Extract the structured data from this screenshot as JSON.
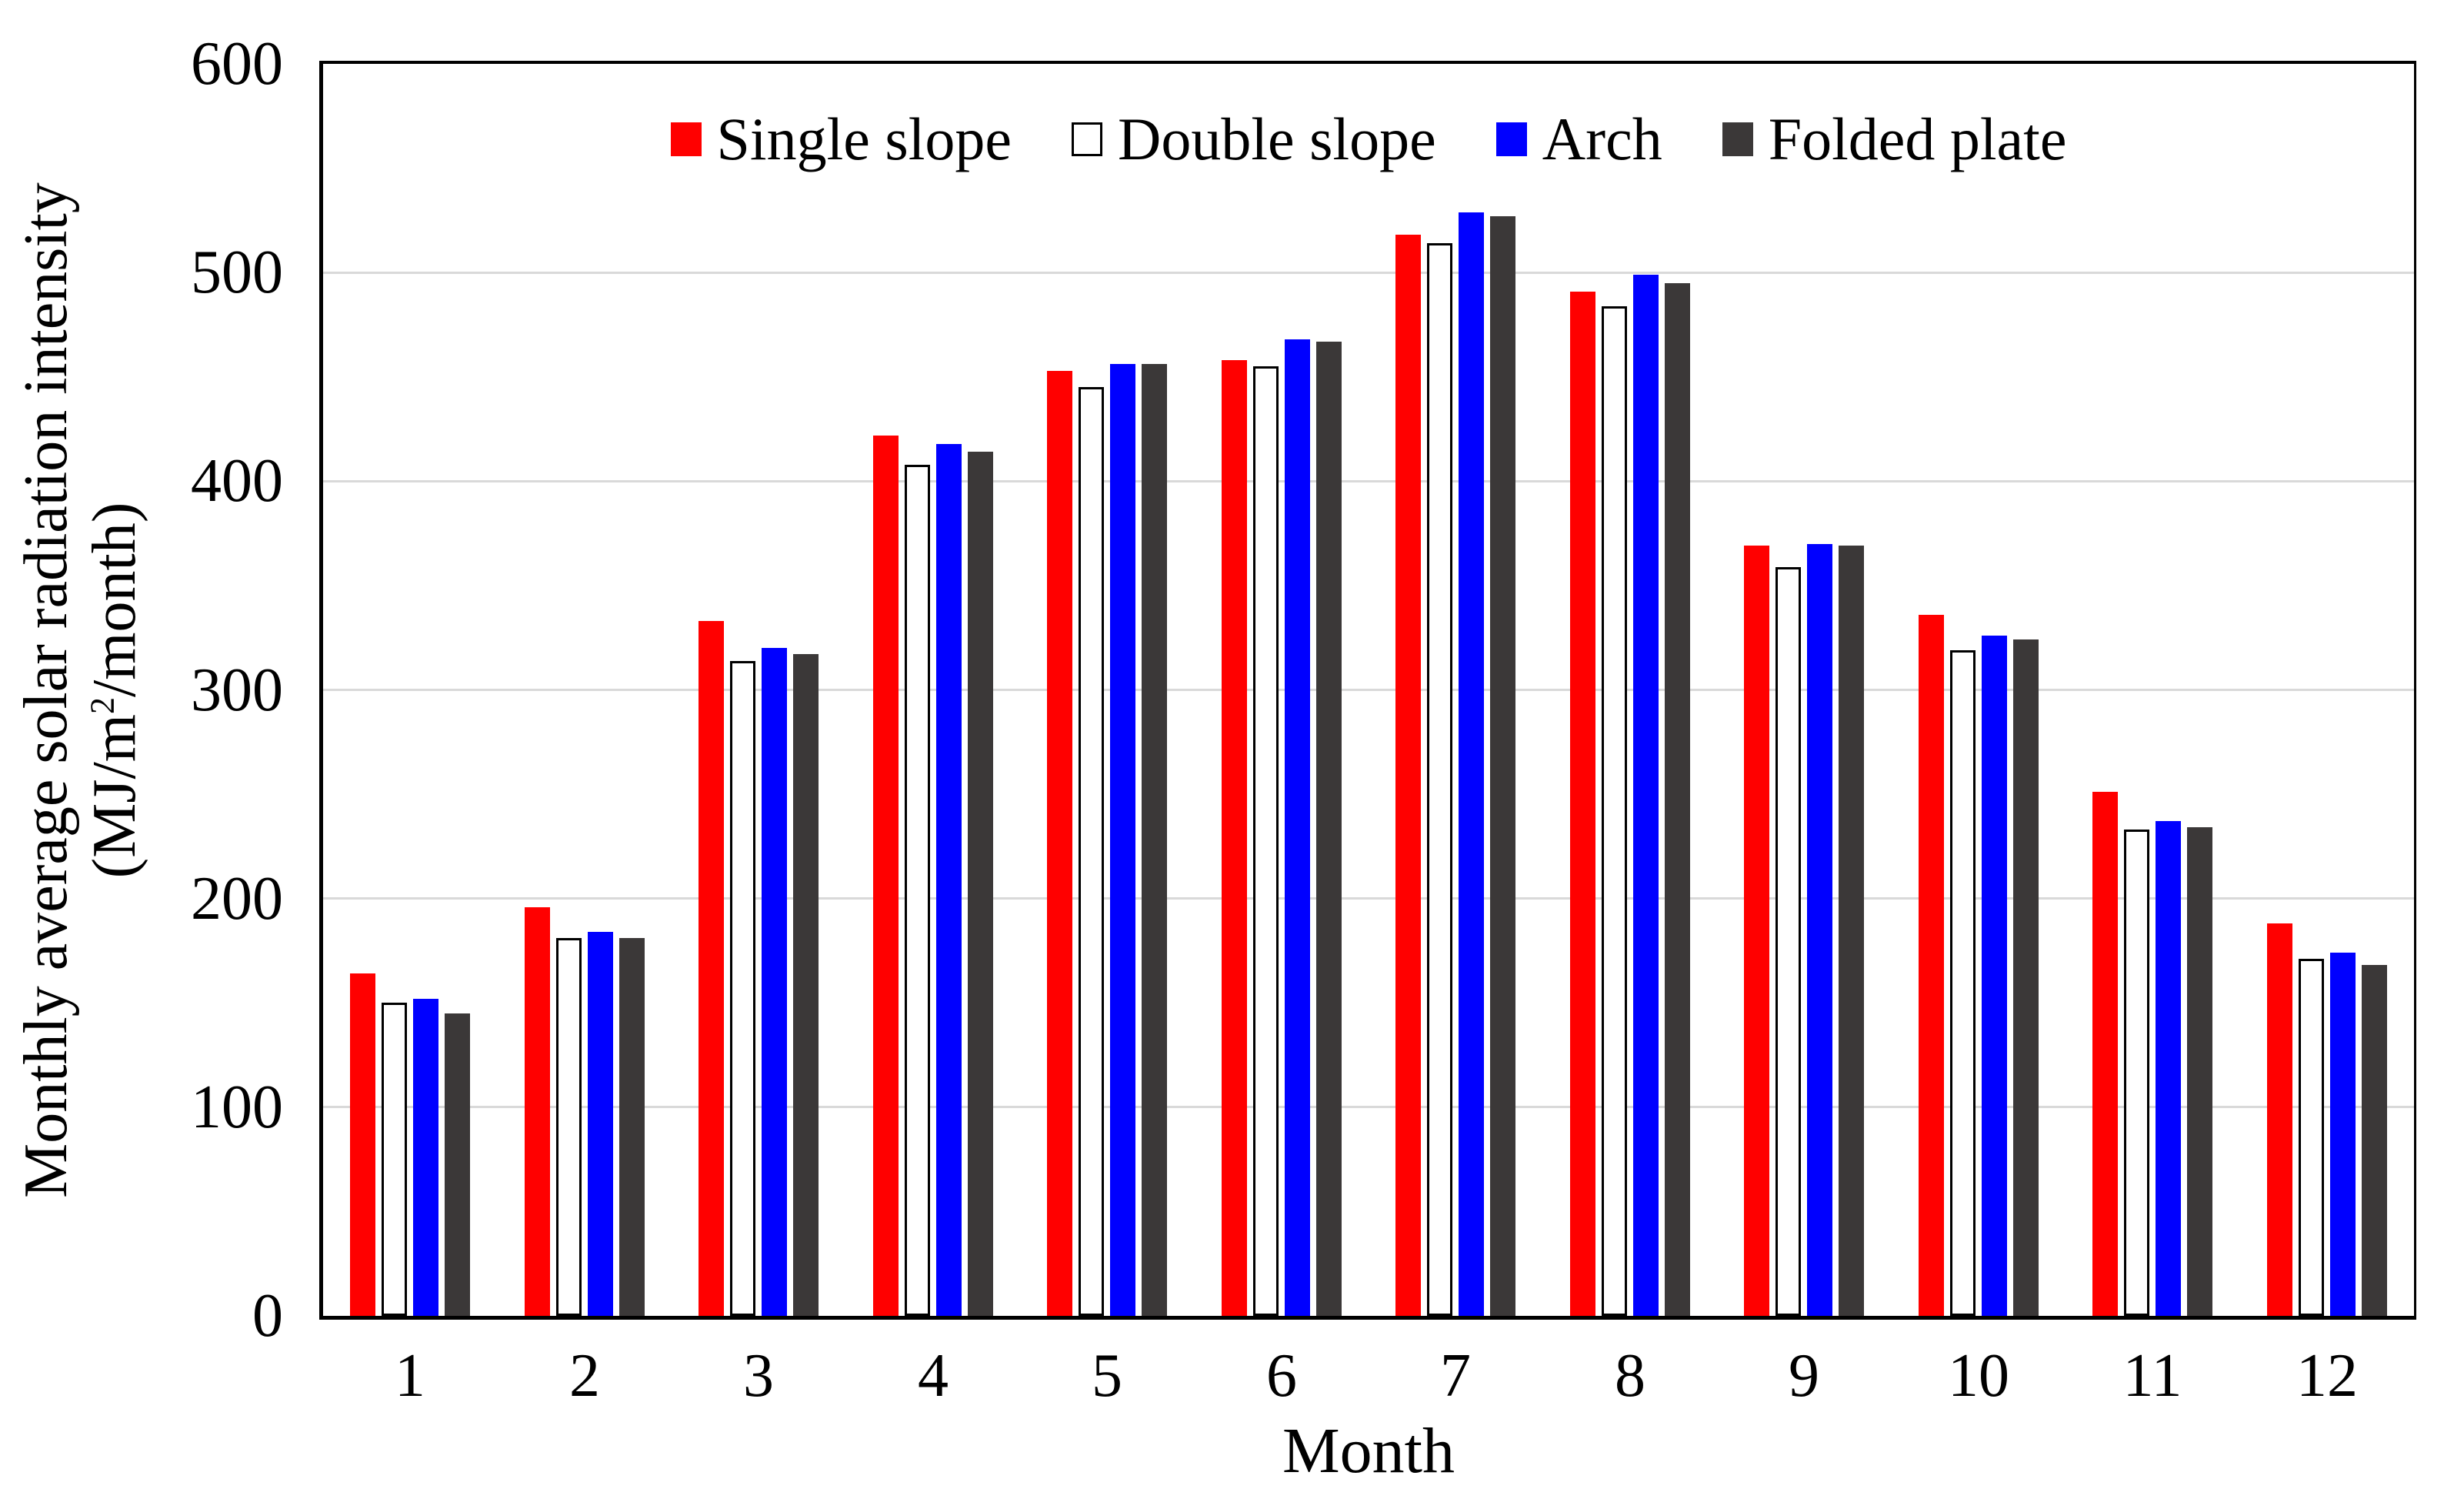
{
  "chart_data": {
    "type": "bar",
    "title": "",
    "xlabel": "Month",
    "ylabel_line1": "Monthly average solar radiation intensity",
    "ylabel_unit_prefix": "(MJ/m",
    "ylabel_unit_sup": "2",
    "ylabel_unit_suffix": "/month)",
    "categories": [
      "1",
      "2",
      "3",
      "4",
      "5",
      "6",
      "7",
      "8",
      "9",
      "10",
      "11",
      "12"
    ],
    "series": [
      {
        "name": "Single slope",
        "color": "#FF0000",
        "border": null,
        "values": [
          164,
          196,
          333,
          422,
          453,
          458,
          518,
          491,
          369,
          336,
          251,
          188
        ]
      },
      {
        "name": "Double slope",
        "color": "#FFFFFF",
        "border": "#000000",
        "values": [
          150,
          181,
          314,
          408,
          445,
          455,
          514,
          484,
          359,
          319,
          233,
          171
        ]
      },
      {
        "name": "Arch",
        "color": "#0000FF",
        "border": null,
        "values": [
          152,
          184,
          320,
          418,
          456,
          468,
          529,
          499,
          370,
          326,
          237,
          174
        ]
      },
      {
        "name": "Folded plate",
        "color": "#3B3838",
        "border": null,
        "values": [
          145,
          181,
          317,
          414,
          456,
          467,
          527,
          495,
          369,
          324,
          234,
          168
        ]
      }
    ],
    "ylim": [
      0,
      600
    ],
    "yticks": [
      0,
      100,
      200,
      300,
      400,
      500,
      600
    ],
    "grid": true,
    "legend_position": "top-center-inside",
    "colors": {
      "gridline": "#D9D9D9",
      "axis": "#000000",
      "background": "#FFFFFF"
    }
  }
}
